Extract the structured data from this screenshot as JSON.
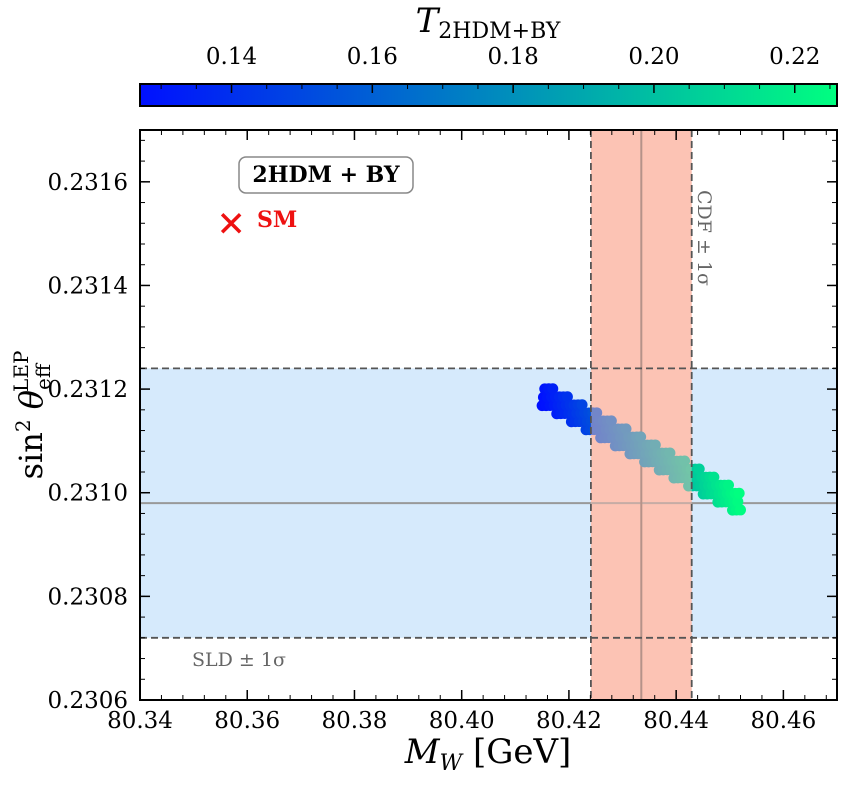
{
  "chart_data": {
    "type": "scatter",
    "title": "",
    "xlabel": "M_W [GeV]",
    "ylabel": "sin² θ_eff^LEP",
    "xlim": [
      80.34,
      80.47
    ],
    "ylim": [
      0.2306,
      0.2317
    ],
    "x_ticks": [
      "80.34",
      "80.36",
      "80.38",
      "80.40",
      "80.42",
      "80.44",
      "80.46"
    ],
    "y_ticks": [
      "0.2306",
      "0.2308",
      "0.2310",
      "0.2312",
      "0.2314",
      "0.2316"
    ],
    "colorbar": {
      "label": "T_2HDM+BY",
      "label_main": "T",
      "label_sub": "2HDM+BY",
      "range": [
        0.127,
        0.226
      ],
      "ticks": [
        "0.14",
        "0.16",
        "0.18",
        "0.20",
        "0.22"
      ],
      "color_low": "#0010ff",
      "color_high": "#00ff80"
    },
    "series": [
      {
        "name": "2HDM + BY scan",
        "x_start": 80.415,
        "y_start": 0.23119,
        "x_end": 80.452,
        "y_end": 0.23098,
        "band_halfwidth_y": 2.2e-05,
        "n_points": 150,
        "t_start": 0.127,
        "t_end": 0.226
      }
    ],
    "bands": {
      "cdf": {
        "center": 80.4335,
        "low": 80.4241,
        "high": 80.4429,
        "label": "CDF ± 1σ",
        "color": "#fcc3b4"
      },
      "sld": {
        "center": 0.23098,
        "low": 0.23072,
        "high": 0.23124,
        "label": "SLD ± 1σ",
        "color": "#d6eafc"
      }
    },
    "sm_point": {
      "label": "SM",
      "x": 80.357,
      "y": 0.23152,
      "color": "#ee1111"
    },
    "legend_box": "2HDM + BY"
  }
}
